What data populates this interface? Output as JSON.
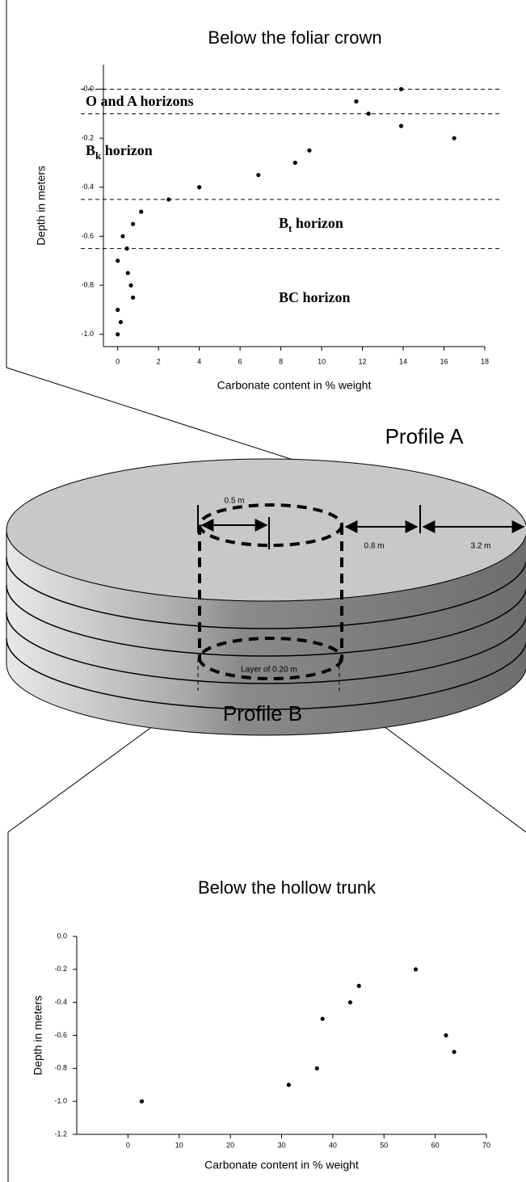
{
  "chart_data": [
    {
      "type": "scatter",
      "title": "Below the foliar crown",
      "x_label": "Carbonate content in % weight",
      "y_label": "Depth in meters",
      "x": [
        13.9,
        11.7,
        12.3,
        13.9,
        16.5,
        9.4,
        8.7,
        6.9,
        4.0,
        2.5,
        1.15,
        0.75,
        0.25,
        0.45,
        0,
        0.5,
        0.65,
        0.75,
        0,
        0.15,
        0
      ],
      "values": [
        0,
        -0.05,
        -0.1,
        -0.15,
        -0.2,
        -0.25,
        -0.3,
        -0.35,
        -0.4,
        -0.45,
        -0.5,
        -0.55,
        -0.6,
        -0.65,
        -0.7,
        -0.75,
        -0.8,
        -0.85,
        -0.9,
        -0.95,
        -1.0
      ],
      "color": "#000000",
      "xlim": [
        -0.7,
        18
      ],
      "ylim": [
        -1.05,
        0.1
      ],
      "xticks": [
        0,
        2,
        4,
        6,
        8,
        10,
        12,
        14,
        16,
        18
      ],
      "yticks": [
        {
          "value": 0,
          "label": "0.0"
        },
        -0.2,
        -0.4,
        -0.6,
        -0.8,
        {
          "value": -1,
          "label": "-1.0"
        }
      ],
      "hlines": [
        0,
        -0.1,
        -0.45,
        -0.65
      ],
      "annotations": [
        [
          "O and A horizons"
        ],
        [
          "B",
          "k",
          " horizon"
        ],
        [
          "B",
          "t",
          " horizon"
        ],
        [
          "BC horizon"
        ]
      ]
    },
    {
      "type": "scatter",
      "title": "Below the hollow trunk",
      "x_label": "Carbonate content in % weight",
      "y_label": "Depth in meters",
      "x": [
        56.2,
        45.1,
        43.4,
        38.0,
        62.1,
        63.7,
        36.9,
        31.4,
        2.7
      ],
      "values": [
        -0.2,
        -0.3,
        -0.4,
        -0.5,
        -0.6,
        -0.7,
        -0.8,
        -0.9,
        -1.0
      ],
      "color": "#000000",
      "xlim": [
        -10,
        70
      ],
      "ylim": [
        -1.2,
        0
      ],
      "xticks": [
        0,
        10,
        20,
        30,
        40,
        50,
        60,
        70
      ],
      "yticks": [
        {
          "value": 0,
          "label": "0.0"
        },
        -0.2,
        -0.4,
        -0.6,
        -0.8,
        {
          "value": -1,
          "label": "-1.0"
        },
        -1.2
      ]
    }
  ],
  "diagram": {
    "profile_a": "Profile A",
    "profile_b": "Profile B",
    "inner_diameter": "0.5 m",
    "outer_gap": "0.8 m",
    "outer_radius": "3.2 m",
    "layer": "Layer of 0.20 m"
  }
}
